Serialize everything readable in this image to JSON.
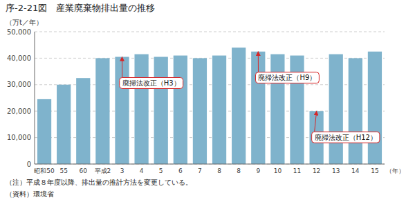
{
  "chart_data": {
    "type": "bar",
    "title": "序-2-21図　産業廃棄物排出量の推移",
    "ylabel": "（万t／年）",
    "xlabel": "（年）",
    "categories": [
      "昭和50",
      "55",
      "60",
      "平成2",
      "3",
      "4",
      "5",
      "6",
      "7",
      "8",
      "8",
      "9",
      "10",
      "11",
      "12",
      "13",
      "14",
      "15"
    ],
    "values": [
      24500,
      30000,
      32500,
      40000,
      40500,
      41500,
      40500,
      41000,
      40000,
      41000,
      44000,
      42500,
      41500,
      41000,
      20000,
      41500,
      40000,
      42500
    ],
    "color": "#7fb3cc",
    "ylim": [
      0,
      50000
    ],
    "yticks": [
      0,
      {
        "value": 10000,
        "label": "10,000"
      },
      {
        "value": 20000,
        "label": "20,000"
      },
      {
        "value": 30000,
        "label": "30,000"
      },
      {
        "value": 40000,
        "label": "40,000"
      },
      {
        "value": 50000,
        "label": "50,000"
      }
    ],
    "grid": true,
    "annotations": [
      {
        "text": "廃掃法改正（H3）",
        "index": 4,
        "value": 40500
      },
      {
        "text": "廃掃法改正（H9）",
        "index": 11,
        "value": 42500
      },
      {
        "text": "廃掃法改正（H12）",
        "index": 14,
        "value": 20000
      }
    ],
    "notes": [
      "（注）平成８年度以降、排出量の推計方法を変更している。",
      "（資料）環境省"
    ]
  }
}
